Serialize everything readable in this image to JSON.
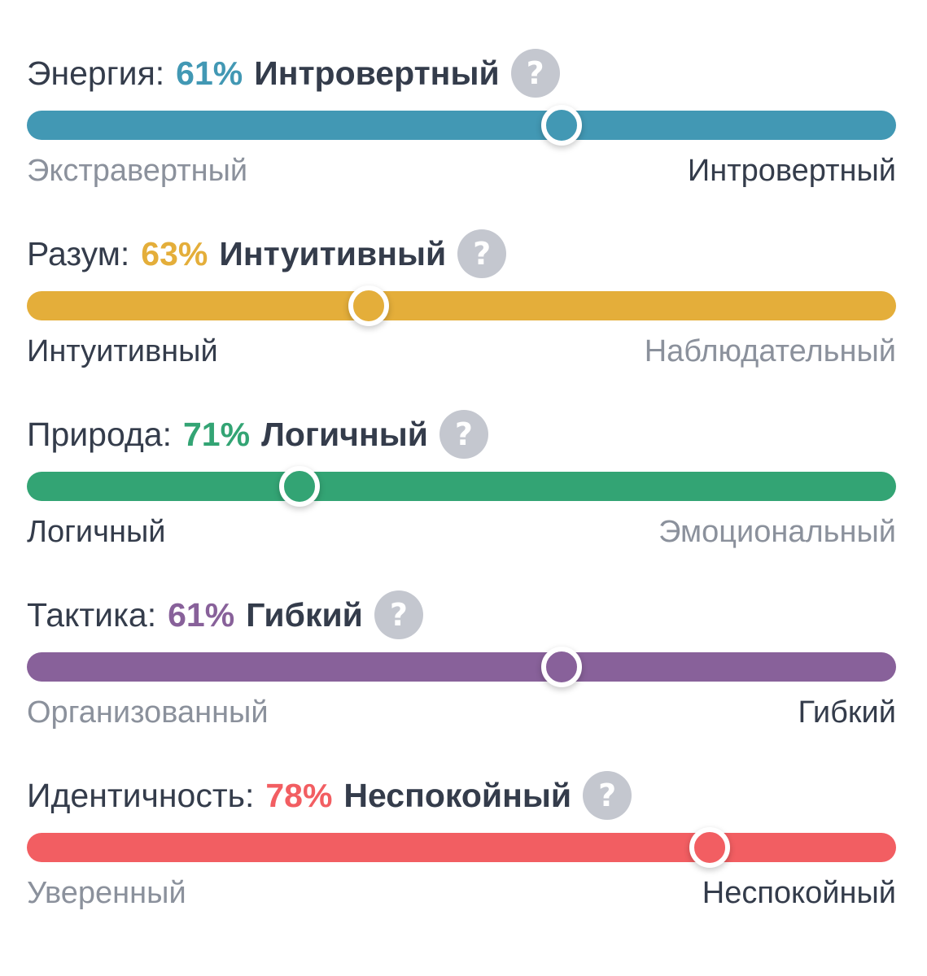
{
  "traits": [
    {
      "name": "Энергия:",
      "percent": "61%",
      "result": "Интровертный",
      "left_label": "Экстравертный",
      "right_label": "Интровертный",
      "active_side": "right",
      "handle_position": 0.615,
      "color": "#4298b4"
    },
    {
      "name": "Разум:",
      "percent": "63%",
      "result": "Интуитивный",
      "left_label": "Интуитивный",
      "right_label": "Наблюдательный",
      "active_side": "left",
      "handle_position": 0.393,
      "color": "#e4ae3a"
    },
    {
      "name": "Природа:",
      "percent": "71%",
      "result": "Логичный",
      "left_label": "Логичный",
      "right_label": "Эмоциональный",
      "active_side": "left",
      "handle_position": 0.314,
      "color": "#33a474"
    },
    {
      "name": "Тактика:",
      "percent": "61%",
      "result": "Гибкий",
      "left_label": "Организованный",
      "right_label": "Гибкий",
      "active_side": "right",
      "handle_position": 0.615,
      "color": "#88619a"
    },
    {
      "name": "Идентичность:",
      "percent": "78%",
      "result": "Неспокойный",
      "left_label": "Уверенный",
      "right_label": "Неспокойный",
      "active_side": "right",
      "handle_position": 0.786,
      "color": "#f25e62"
    }
  ],
  "help_icon": "question-mark-icon",
  "help_glyph": "?"
}
